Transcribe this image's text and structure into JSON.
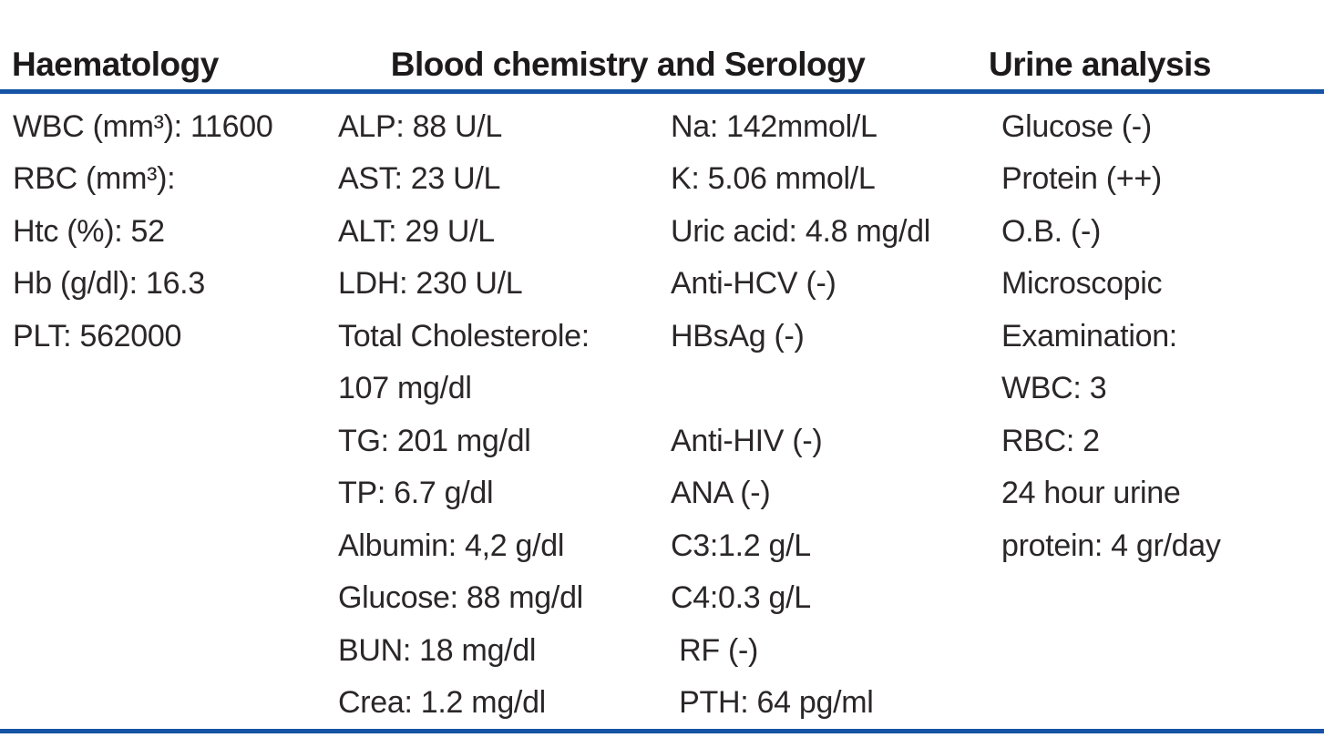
{
  "table": {
    "title": "Laboratory results table",
    "rule_color": "#1553a4",
    "text_color": "#2b2728",
    "headers": [
      {
        "label": "Haematology"
      },
      {
        "label": "Blood chemistry and Serology"
      },
      {
        "label": "Urine analysis"
      }
    ],
    "rows": [
      [
        "WBC (mm³): 11600",
        "ALP: 88 U/L",
        "Na: 142mmol/L",
        "Glucose (-)"
      ],
      [
        "RBC (mm³):",
        "AST: 23 U/L",
        "K: 5.06 mmol/L",
        "Protein (++)"
      ],
      [
        "Htc (%): 52",
        "ALT: 29 U/L",
        "Uric acid: 4.8 mg/dl",
        "O.B. (-)"
      ],
      [
        "Hb (g/dl): 16.3",
        "LDH: 230 U/L",
        "Anti-HCV (-)",
        "Microscopic"
      ],
      [
        "PLT: 562000",
        "Total Cholesterole:",
        "HBsAg (-)",
        "Examination:"
      ],
      [
        "",
        "107 mg/dl",
        "",
        "WBC: 3"
      ],
      [
        "",
        "TG: 201 mg/dl",
        "Anti-HIV (-)",
        "RBC: 2"
      ],
      [
        "",
        "TP: 6.7 g/dl",
        "ANA (-)",
        "24 hour urine"
      ],
      [
        "",
        "Albumin: 4,2 g/dl",
        "C3:1.2 g/L",
        "protein: 4 gr/day"
      ],
      [
        "",
        "Glucose: 88 mg/dl",
        "C4:0.3 g/L",
        ""
      ],
      [
        "",
        "BUN: 18 mg/dl",
        " RF (-)",
        ""
      ],
      [
        "",
        "Crea: 1.2 mg/dl",
        " PTH: 64 pg/ml",
        ""
      ]
    ]
  }
}
